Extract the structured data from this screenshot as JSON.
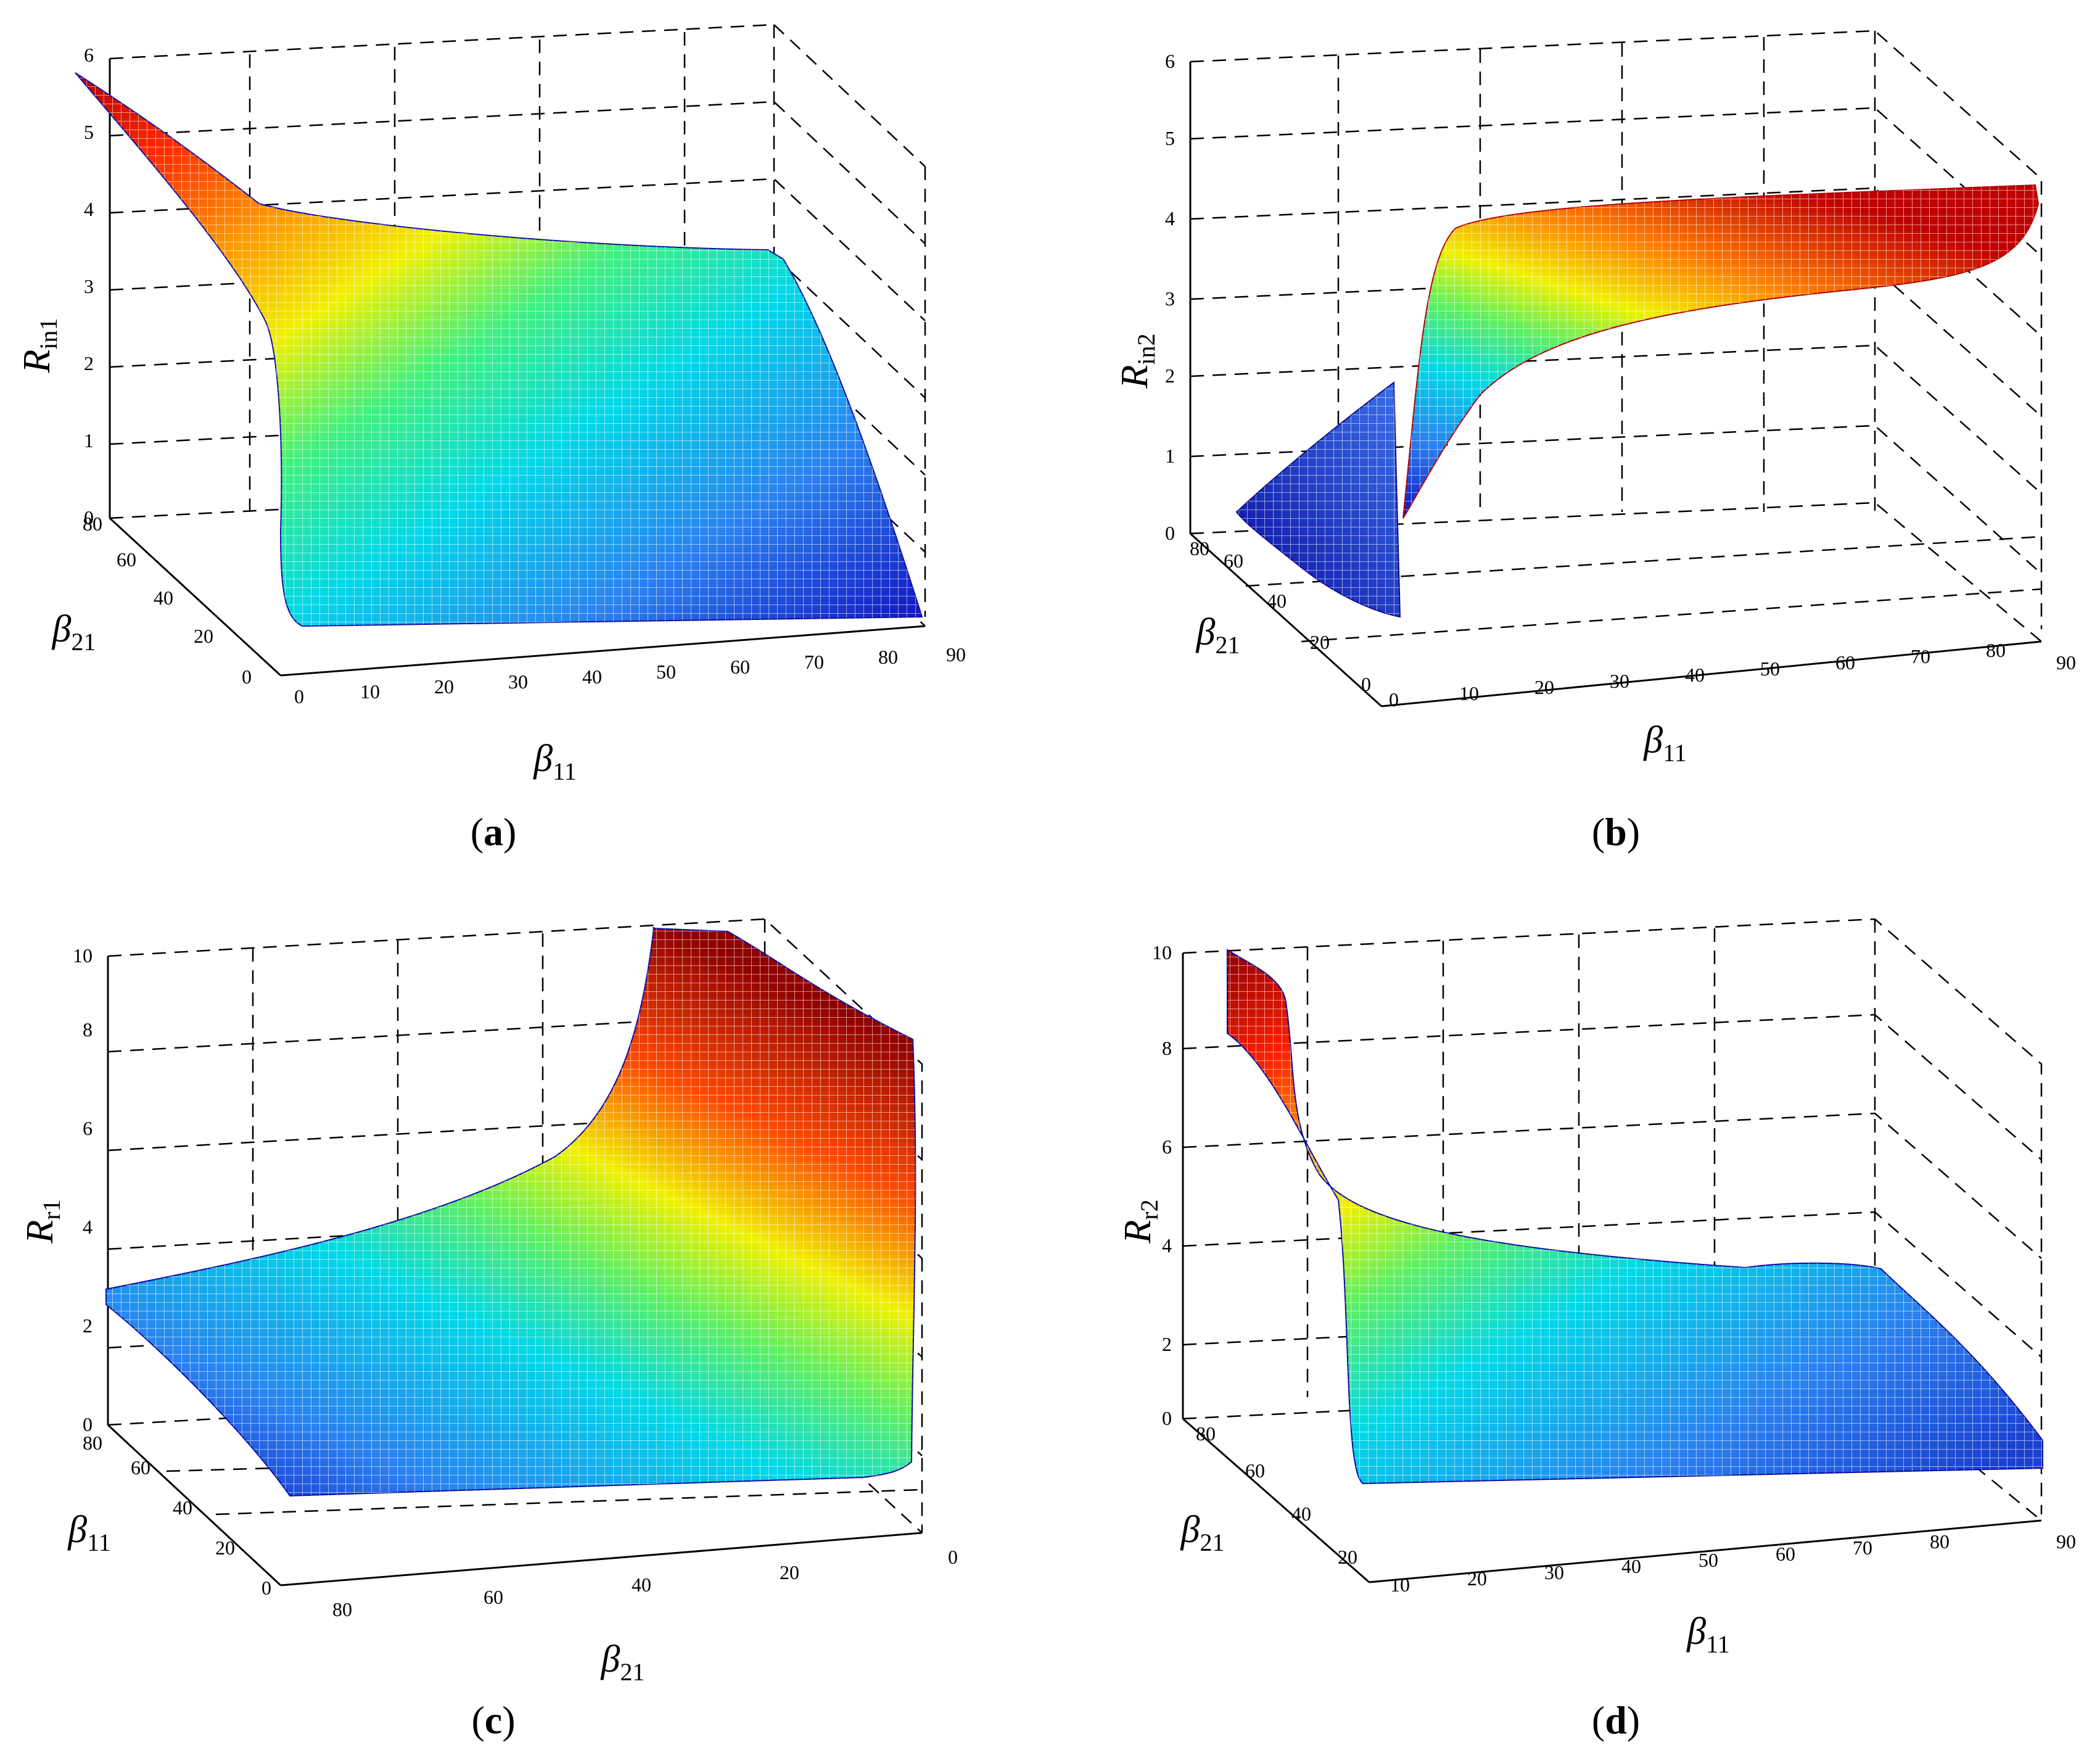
{
  "chart_data": [
    {
      "type": "surface",
      "id": "a",
      "caption": {
        "open": "(",
        "letter": "a",
        "close": ")"
      },
      "zlabel": {
        "symbol": "R",
        "sub": "in1"
      },
      "xlabel": {
        "symbol": "β",
        "sub": "11"
      },
      "ylabel": {
        "symbol": "β",
        "sub": "21"
      },
      "z_ticks": [
        "0",
        "1",
        "2",
        "3",
        "4",
        "5",
        "6"
      ],
      "x_ticks": [
        "0",
        "10",
        "20",
        "30",
        "40",
        "50",
        "60",
        "70",
        "80",
        "90"
      ],
      "y_ticks": [
        "0",
        "20",
        "40",
        "60",
        "80"
      ],
      "zlim": [
        0,
        6
      ],
      "xlim": [
        0,
        90
      ],
      "ylim": [
        0,
        90
      ],
      "surface_peak": 5.8,
      "surface_plateau": 3.2
    },
    {
      "type": "surface",
      "id": "b",
      "caption": {
        "open": "(",
        "letter": "b",
        "close": ")"
      },
      "zlabel": {
        "symbol": "R",
        "sub": "in2"
      },
      "xlabel": {
        "symbol": "β",
        "sub": "11"
      },
      "ylabel": {
        "symbol": "β",
        "sub": "21"
      },
      "z_ticks": [
        "0",
        "1",
        "2",
        "3",
        "4",
        "5",
        "6"
      ],
      "x_ticks": [
        "0",
        "10",
        "20",
        "30",
        "40",
        "50",
        "60",
        "70",
        "80",
        "90"
      ],
      "y_ticks": [
        "0",
        "20",
        "40",
        "60",
        "80"
      ],
      "zlim": [
        0,
        6
      ],
      "xlim": [
        0,
        90
      ],
      "ylim": [
        0,
        90
      ],
      "surface_peak": 4.2,
      "surface_plateau": 3.0
    },
    {
      "type": "surface",
      "id": "c",
      "caption": {
        "open": "(",
        "letter": "c",
        "close": ")"
      },
      "zlabel": {
        "symbol": "R",
        "sub": "r1"
      },
      "xlabel": {
        "symbol": "β",
        "sub": "21"
      },
      "ylabel": {
        "symbol": "β",
        "sub": "11"
      },
      "z_ticks": [
        "0",
        "2",
        "4",
        "6",
        "8",
        "10"
      ],
      "x_ticks": [
        "80",
        "60",
        "40",
        "20",
        "0"
      ],
      "y_ticks": [
        "0",
        "20",
        "40",
        "60",
        "80"
      ],
      "zlim": [
        0,
        10
      ],
      "xlim": [
        90,
        0
      ],
      "ylim": [
        0,
        90
      ],
      "surface_peak": 10,
      "surface_plateau": 3.0
    },
    {
      "type": "surface",
      "id": "d",
      "caption": {
        "open": "(",
        "letter": "d",
        "close": ")"
      },
      "zlabel": {
        "symbol": "R",
        "sub": "r2"
      },
      "xlabel": {
        "symbol": "β",
        "sub": "11"
      },
      "ylabel": {
        "symbol": "β",
        "sub": "21"
      },
      "z_ticks": [
        "0",
        "2",
        "4",
        "6",
        "8",
        "10"
      ],
      "x_ticks": [
        "10",
        "20",
        "30",
        "40",
        "50",
        "60",
        "70",
        "80",
        "90"
      ],
      "y_ticks": [
        "20",
        "40",
        "60",
        "80"
      ],
      "zlim": [
        0,
        10
      ],
      "xlim": [
        10,
        90
      ],
      "ylim": [
        10,
        90
      ],
      "surface_peak": 10,
      "surface_plateau": 2.6
    }
  ]
}
